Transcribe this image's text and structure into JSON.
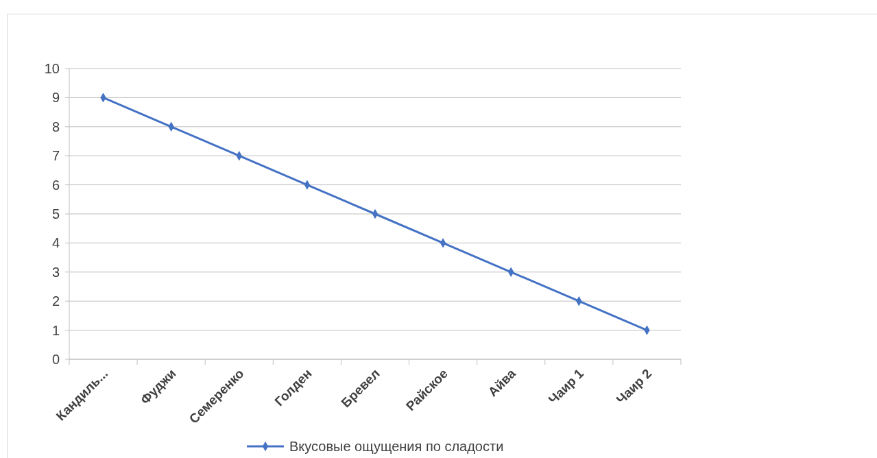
{
  "chart_data": {
    "type": "line",
    "categories": [
      "Кандиль...",
      "Фуджи",
      "Семеренко",
      "Голден",
      "Бревел",
      "Райское",
      "Айва",
      "Чаир 1",
      "Чаир 2"
    ],
    "series": [
      {
        "name": "Вкусовые ощущения по сладости",
        "color": "#4472c4",
        "values": [
          9,
          8,
          7,
          6,
          5,
          4,
          3,
          2,
          1
        ]
      }
    ],
    "ylim": [
      0,
      10
    ],
    "yticks": [
      0,
      1,
      2,
      3,
      4,
      5,
      6,
      7,
      8,
      9,
      10
    ],
    "grid": "y",
    "legend": "bottom",
    "marker": "diamond",
    "line_style": "solid"
  }
}
